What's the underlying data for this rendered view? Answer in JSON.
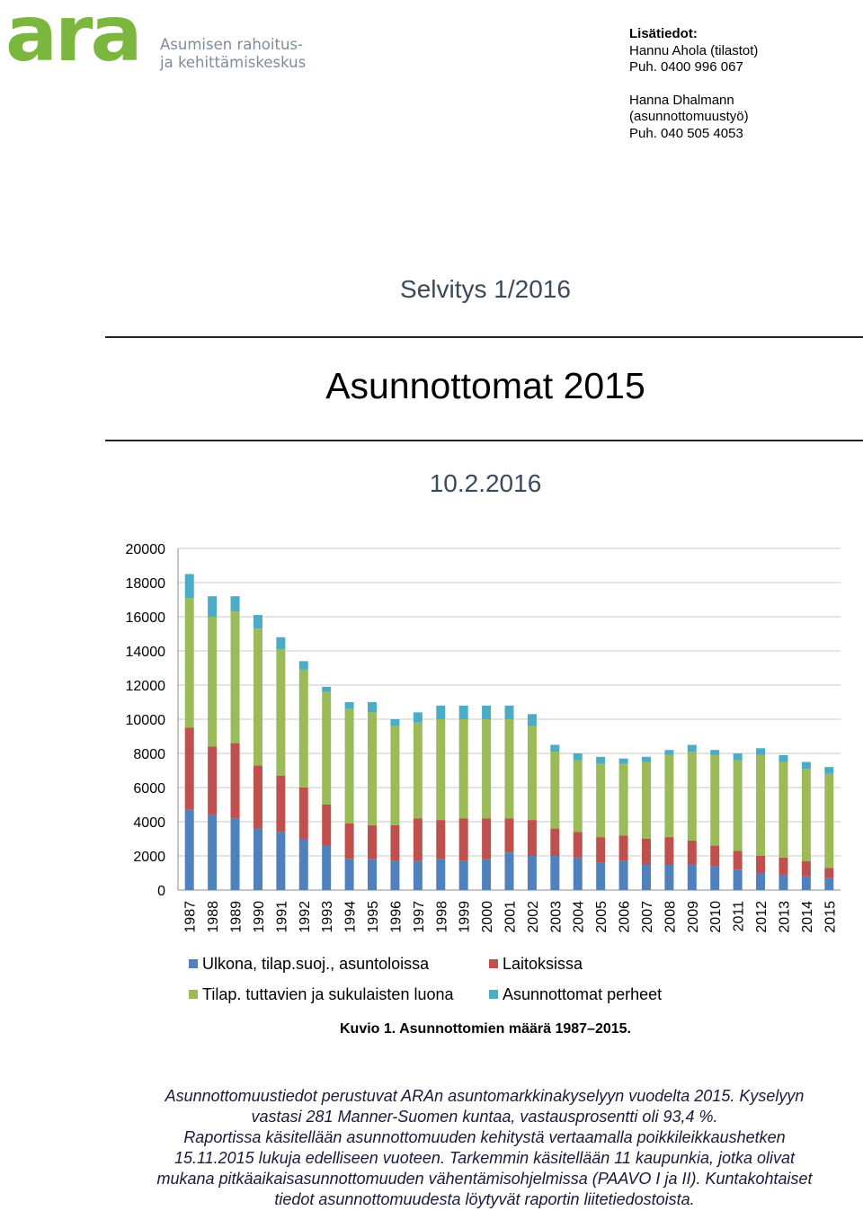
{
  "logo": {
    "mark": "ara",
    "line1": "Asumisen rahoitus-",
    "line2": "ja kehittämiskeskus",
    "color": "#7bb73f"
  },
  "contact": {
    "heading": "Lisätiedot:",
    "person1": "Hannu Ahola (tilastot)",
    "phone1": "Puh. 0400 996 067",
    "person2_name": "Hanna Dhalmann",
    "person2_role": "(asunnottomuustyö)",
    "phone2": "Puh. 040 505 4053"
  },
  "report_label": "Selvitys 1/2016",
  "title": "Asunnottomat 2015",
  "date": "10.2.2016",
  "chart_data": {
    "type": "bar",
    "stacked": true,
    "categories": [
      "1987",
      "1988",
      "1989",
      "1990",
      "1991",
      "1992",
      "1993",
      "1994",
      "1995",
      "1996",
      "1997",
      "1998",
      "1999",
      "2000",
      "2001",
      "2002",
      "2003",
      "2004",
      "2005",
      "2006",
      "2007",
      "2008",
      "2009",
      "2010",
      "2011",
      "2012",
      "2013",
      "2014",
      "2015"
    ],
    "series": [
      {
        "name": "Ulkona, tilap.suoj., asuntoloissa",
        "color": "#4f81bd",
        "values": [
          4700,
          4400,
          4200,
          3600,
          3400,
          3000,
          2600,
          1800,
          1800,
          1700,
          1700,
          1800,
          1700,
          1800,
          2200,
          2000,
          2000,
          1900,
          1600,
          1700,
          1500,
          1500,
          1500,
          1400,
          1200,
          1000,
          900,
          800,
          700
        ]
      },
      {
        "name": "Laitoksissa",
        "color": "#c0504d",
        "values": [
          4800,
          4000,
          4400,
          3700,
          3300,
          3000,
          2400,
          2100,
          2000,
          2100,
          2500,
          2300,
          2500,
          2400,
          2000,
          2100,
          1600,
          1500,
          1500,
          1500,
          1500,
          1600,
          1400,
          1200,
          1100,
          1000,
          1000,
          900,
          600
        ]
      },
      {
        "name": "Tilap. tuttavien ja sukulaisten luona",
        "color": "#9bbb59",
        "values": [
          7600,
          7600,
          7700,
          8000,
          7400,
          6900,
          6600,
          6700,
          6600,
          5800,
          5600,
          5900,
          5800,
          5800,
          5800,
          5500,
          4500,
          4200,
          4300,
          4200,
          4500,
          4800,
          5200,
          5300,
          5300,
          5900,
          5600,
          5400,
          5500
        ]
      },
      {
        "name": "Asunnottomat perheet",
        "color": "#4bacc6",
        "values": [
          1400,
          1200,
          900,
          800,
          700,
          500,
          300,
          400,
          600,
          400,
          600,
          800,
          800,
          800,
          800,
          700,
          400,
          400,
          400,
          300,
          300,
          300,
          400,
          300,
          400,
          400,
          400,
          400,
          400
        ]
      }
    ],
    "ylim": [
      0,
      20000
    ],
    "yticks": [
      "0",
      "2000",
      "4000",
      "6000",
      "8000",
      "10000",
      "12000",
      "14000",
      "16000",
      "18000",
      "20000"
    ],
    "grid": true,
    "legend_position": "bottom"
  },
  "caption": "Kuvio 1. Asunnottomien määrä 1987–2015.",
  "body_lines": [
    "Asunnottomuustiedot perustuvat ARAn asuntomarkkinakyselyyn vuodelta 2015. Kyselyyn",
    "vastasi 281 Manner-Suomen kuntaa, vastausprosentti oli 93,4 %.",
    "Raportissa käsitellään asunnottomuuden kehitystä vertaamalla poikkileikkaushetken",
    "15.11.2015 lukuja edelliseen vuoteen. Tarkemmin käsitellään 11 kaupunkia, jotka olivat",
    "mukana pitkäaikaisasunnottomuuden vähentämisohjelmissa (PAAVO I ja II). Kuntakohtaiset",
    "tiedot asunnottomuudesta löytyvät raportin liitetiedostoista."
  ]
}
